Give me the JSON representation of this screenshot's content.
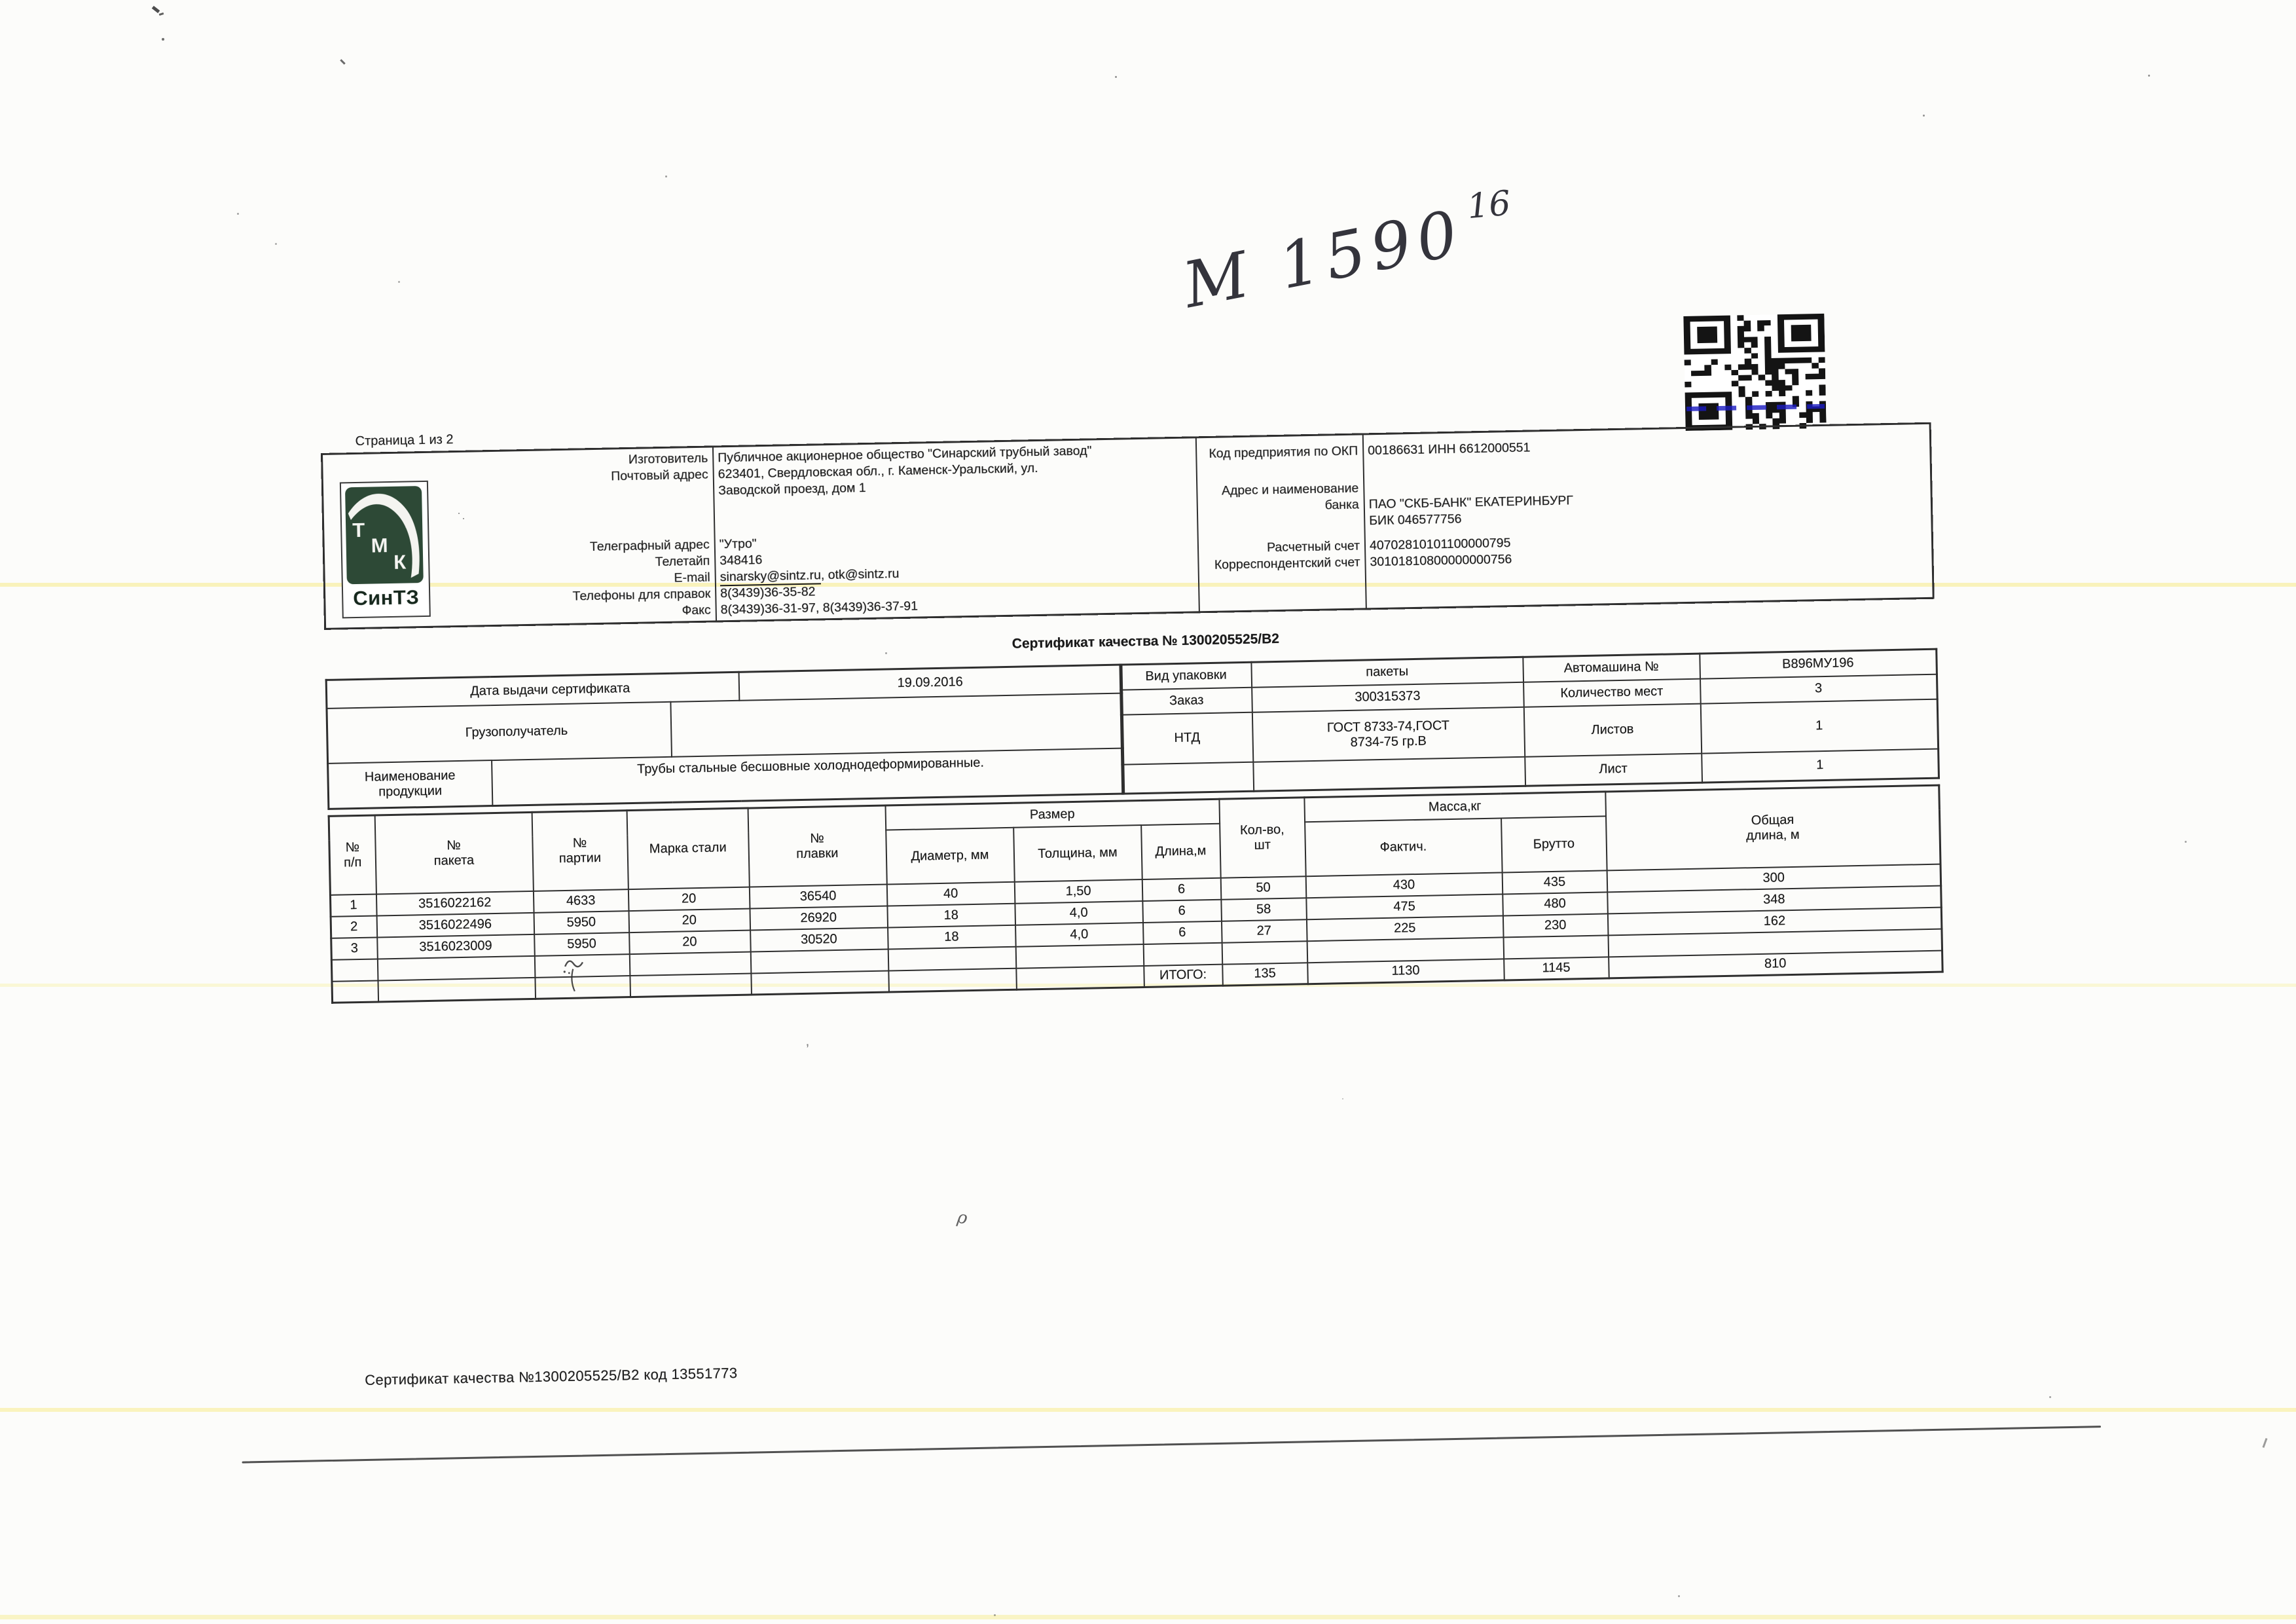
{
  "page": {
    "label_page": "Страница 1 из 2",
    "handwritten": {
      "main": "М 1590",
      "sup": "16"
    },
    "footer_line": "Сертификат качества №1300205525/В2 код 13551773"
  },
  "logo": {
    "letters": [
      "Т",
      "М",
      "К"
    ],
    "caption": "СинТЗ"
  },
  "manufacturer": {
    "rows": [
      {
        "label": "Изготовитель",
        "value": "Публичное акционерное общество \"Синарский трубный завод\""
      },
      {
        "label": "Почтовый адрес",
        "value": "623401, Свердловская обл., г. Каменск-Уральский, ул."
      },
      {
        "label": "",
        "value": "Заводской проезд, дом 1"
      },
      {
        "label": "Телеграфный адрес",
        "value": "\"Утро\""
      },
      {
        "label": "Телетайп",
        "value": "348416"
      },
      {
        "label": "E-mail",
        "value_link": "sinarsky@sintz.ru",
        "value_rest": ",  otk@sintz.ru"
      },
      {
        "label": "Телефоны для справок",
        "value": "8(3439)36-35-82"
      },
      {
        "label": "Факс",
        "value": "8(3439)36-31-97, 8(3439)36-37-91"
      }
    ]
  },
  "bank": {
    "label_okp": "Код предприятия по ОКП",
    "value_okp": "00186631 ИНН 6612000551",
    "label_addr1": "Адрес и наименование",
    "label_addr2": "банка",
    "value_bank": "ПАО \"СКБ-БАНК\" ЕКАТЕРИНБУРГ",
    "value_bik": "БИК 046577756",
    "label_acc": "Расчетный счет",
    "value_acc": "40702810101100000795",
    "label_corr": "Корреспондентский счет",
    "value_corr": "30101810800000000756"
  },
  "certificate": {
    "title": "Сертификат качества №  1300205525/В2"
  },
  "info_left": {
    "date_label": "Дата выдачи сертификата",
    "date_value": "19.09.2016",
    "consignee_label": "Грузополучатель",
    "consignee_value": "",
    "product_label1": "Наименование",
    "product_label2": "продукции",
    "product_value": "Трубы стальные бесшовные холоднодеформированные."
  },
  "info_right": {
    "packaging_label": "Вид упаковки",
    "packaging_value": "пакеты",
    "truck_label": "Автомашина №",
    "truck_value": "В896МУ196",
    "order_label": "Заказ",
    "order_value": "300315373",
    "places_label": "Количество мест",
    "places_value": "3",
    "ntd_label": "НТД",
    "ntd_value1": "ГОСТ 8733-74,ГОСТ",
    "ntd_value2": "8734-75 гр.В",
    "sheets_label": "Листов",
    "sheets_value": "1",
    "sheet_label": "Лист",
    "sheet_value": "1"
  },
  "table": {
    "h_num1": "№",
    "h_num2": "п/п",
    "h_pack1": "№",
    "h_pack2": "пакета",
    "h_batch1": "№",
    "h_batch2": "партии",
    "h_steel": "Марка стали",
    "h_melt1": "№",
    "h_melt2": "плавки",
    "h_size": "Размер",
    "h_diam": "Диаметр, мм",
    "h_thick": "Толщина, мм",
    "h_len": "Длина,м",
    "h_qty1": "Кол-во,",
    "h_qty2": "шт",
    "h_mass": "Масса,кг",
    "h_fact": "Фактич.",
    "h_gross": "Брутто",
    "h_total1": "Общая",
    "h_total2": "длина, м",
    "rows": [
      {
        "n": "1",
        "pack": "3516022162",
        "batch": "4633",
        "steel": "20",
        "melt": "36540",
        "diam": "40",
        "thick": "1,50",
        "len": "6",
        "qty": "50",
        "fact": "430",
        "gross": "435",
        "total": "300"
      },
      {
        "n": "2",
        "pack": "3516022496",
        "batch": "5950",
        "steel": "20",
        "melt": "26920",
        "diam": "18",
        "thick": "4,0",
        "len": "6",
        "qty": "58",
        "fact": "475",
        "gross": "480",
        "total": "348"
      },
      {
        "n": "3",
        "pack": "3516023009",
        "batch": "5950",
        "steel": "20",
        "melt": "30520",
        "diam": "18",
        "thick": "4,0",
        "len": "6",
        "qty": "27",
        "fact": "225",
        "gross": "230",
        "total": "162"
      }
    ],
    "totals": {
      "label": "ИТОГО:",
      "qty": "135",
      "fact": "1130",
      "gross": "1145",
      "total": "810"
    }
  }
}
